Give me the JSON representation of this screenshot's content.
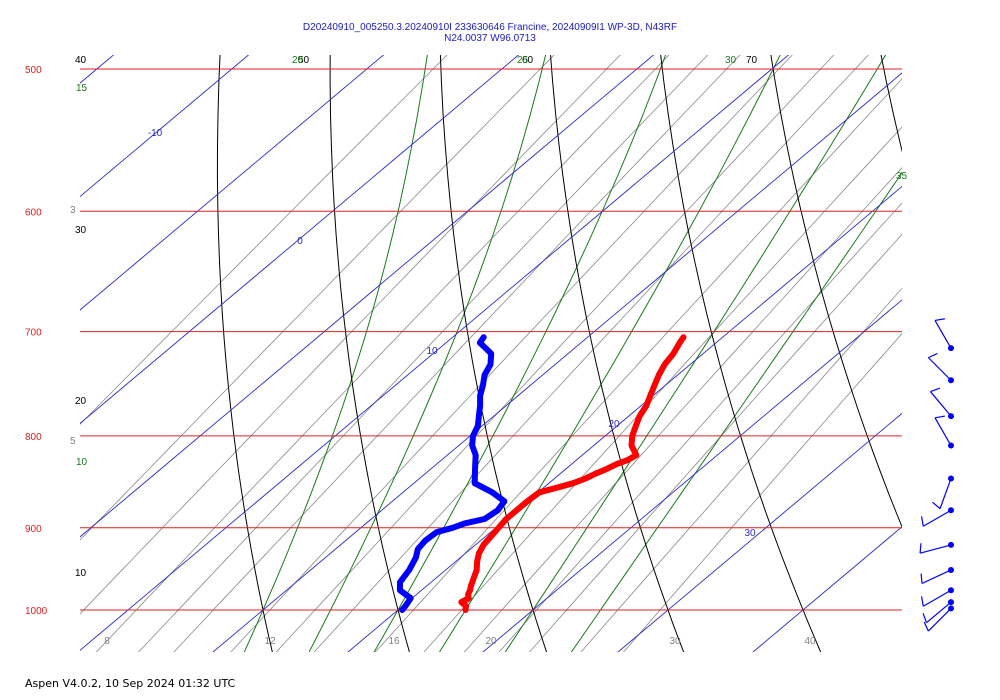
{
  "chart_data": {
    "type": "skew-t",
    "title_line1": "D20240910_005250.3.20240910I 233630646 Francine, 20240909I1 WP-3D, N43RF",
    "title_line2": "N24.0037 W96.0713",
    "pressure_levels": [
      {
        "p": 500,
        "label": "500"
      },
      {
        "p": 600,
        "label": "600"
      },
      {
        "p": 700,
        "label": "700"
      },
      {
        "p": 800,
        "label": "800"
      },
      {
        "p": 900,
        "label": "900"
      },
      {
        "p": 1000,
        "label": "1000"
      }
    ],
    "bottom_temperature_labels": [
      "8",
      "12",
      "16",
      "20",
      "30",
      "40"
    ],
    "isotherms": [
      -60,
      -50,
      -40,
      -30,
      -20,
      -10,
      0,
      10,
      20,
      30,
      40,
      50
    ],
    "isotherm_labels": [
      {
        "t": -10,
        "text": "-10"
      },
      {
        "t": 0,
        "text": "0"
      },
      {
        "t": 10,
        "text": "10"
      },
      {
        "t": 20,
        "text": "20"
      },
      {
        "t": 30,
        "text": "30"
      }
    ],
    "dry_adiabats": [
      {
        "theta": 10,
        "label": "10"
      },
      {
        "theta": 20,
        "label": "20"
      },
      {
        "theta": 30,
        "label": "30"
      },
      {
        "theta": 40,
        "label": "40"
      },
      {
        "theta": 50,
        "label": "50"
      },
      {
        "theta": 60,
        "label": "60"
      },
      {
        "theta": 70,
        "label": "70"
      }
    ],
    "moist_adiabats": [
      {
        "thw": 10,
        "label": "10"
      },
      {
        "thw": 15,
        "label": "15"
      },
      {
        "thw": 20,
        "label": "20"
      },
      {
        "thw": 25,
        "label": "25"
      },
      {
        "thw": 30,
        "label": "30"
      },
      {
        "thw": 35,
        "label": "35"
      }
    ],
    "mixing_ratio_labels": [
      {
        "w": 3,
        "text": "3"
      },
      {
        "w": 5,
        "text": "5"
      }
    ],
    "temperature_profile": [
      [
        1000,
        25.0
      ],
      [
        995,
        24.7
      ],
      [
        990,
        24.0
      ],
      [
        985,
        24.2
      ],
      [
        980,
        23.8
      ],
      [
        975,
        23.6
      ],
      [
        970,
        23.3
      ],
      [
        960,
        22.8
      ],
      [
        950,
        22.3
      ],
      [
        940,
        21.6
      ],
      [
        930,
        21.0
      ],
      [
        920,
        20.6
      ],
      [
        910,
        20.4
      ],
      [
        900,
        20.2
      ],
      [
        890,
        20.0
      ],
      [
        880,
        20.0
      ],
      [
        870,
        20.0
      ],
      [
        860,
        20.1
      ],
      [
        855,
        21.0
      ],
      [
        850,
        21.8
      ],
      [
        845,
        22.3
      ],
      [
        840,
        22.6
      ],
      [
        835,
        23.0
      ],
      [
        830,
        23.3
      ],
      [
        825,
        23.8
      ],
      [
        820,
        24.0
      ],
      [
        810,
        22.8
      ],
      [
        800,
        22.0
      ],
      [
        790,
        21.4
      ],
      [
        780,
        20.8
      ],
      [
        770,
        20.4
      ],
      [
        760,
        19.8
      ],
      [
        750,
        19.2
      ],
      [
        740,
        18.6
      ],
      [
        730,
        18.1
      ],
      [
        720,
        17.8
      ],
      [
        710,
        17.3
      ],
      [
        705,
        17.1
      ]
    ],
    "dewpoint_profile": [
      [
        1000,
        20.3
      ],
      [
        995,
        20.2
      ],
      [
        985,
        19.9
      ],
      [
        975,
        18.4
      ],
      [
        965,
        17.7
      ],
      [
        950,
        17.3
      ],
      [
        935,
        16.7
      ],
      [
        925,
        16.1
      ],
      [
        915,
        15.9
      ],
      [
        905,
        16.0
      ],
      [
        900,
        16.8
      ],
      [
        895,
        17.3
      ],
      [
        890,
        18.4
      ],
      [
        880,
        18.6
      ],
      [
        870,
        18.3
      ],
      [
        860,
        16.6
      ],
      [
        850,
        14.5
      ],
      [
        840,
        13.7
      ],
      [
        830,
        12.9
      ],
      [
        820,
        12.1
      ],
      [
        810,
        11.0
      ],
      [
        800,
        10.2
      ],
      [
        790,
        9.7
      ],
      [
        780,
        8.9
      ],
      [
        770,
        8.1
      ],
      [
        760,
        7.2
      ],
      [
        750,
        6.5
      ],
      [
        740,
        5.7
      ],
      [
        730,
        5.2
      ],
      [
        720,
        4.3
      ],
      [
        710,
        2.5
      ],
      [
        705,
        2.3
      ]
    ],
    "wind_barbs": [
      {
        "p": 715,
        "dir": 330,
        "kt": 10
      },
      {
        "p": 745,
        "dir": 315,
        "kt": 10
      },
      {
        "p": 780,
        "dir": 320,
        "kt": 10
      },
      {
        "p": 810,
        "dir": 330,
        "kt": 10
      },
      {
        "p": 845,
        "dir": 200,
        "kt": 10
      },
      {
        "p": 880,
        "dir": 240,
        "kt": 10
      },
      {
        "p": 920,
        "dir": 255,
        "kt": 10
      },
      {
        "p": 950,
        "dir": 245,
        "kt": 10
      },
      {
        "p": 975,
        "dir": 240,
        "kt": 10
      },
      {
        "p": 990,
        "dir": 230,
        "kt": 10
      },
      {
        "p": 998,
        "dir": 225,
        "kt": 10
      }
    ],
    "colors": {
      "isobar": "#e02020",
      "isotherm": "#2a2ad0",
      "dry_adiabat": "#000000",
      "moist_adiabat": "#1a7a1a",
      "mixing_ratio": "#8a8a8a",
      "temperature": "#ff0000",
      "dewpoint": "#0000ff",
      "wind": "#0000ff"
    }
  },
  "footer": "Aspen V4.0.2, 10 Sep 2024  01:32 UTC"
}
